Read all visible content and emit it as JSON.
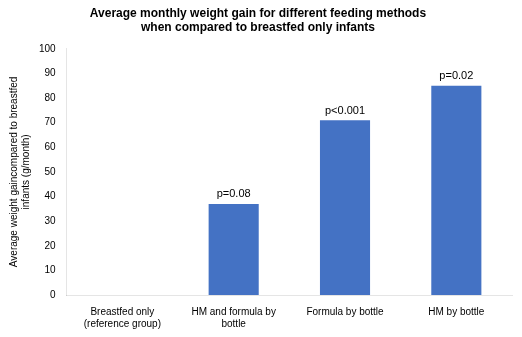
{
  "chart_data": {
    "type": "bar",
    "title": "Average monthly weight gain for different feeding methods\nwhen compared to breastfed only infants",
    "categories": [
      "Breastfed only\n(reference group)",
      "HM and formula by\nbottle",
      "Formula by bottle",
      "HM by bottle"
    ],
    "values": [
      0,
      37,
      71,
      85
    ],
    "color": "#4472C4",
    "ylabel": "Average weight gaincompared to breastfed\ninfants (g/month)",
    "ylim": [
      0,
      100
    ],
    "yticks": [
      0,
      10,
      20,
      30,
      40,
      50,
      60,
      70,
      80,
      90,
      100
    ],
    "grid": false,
    "annotations": [
      {
        "category": "HM and formula by\nbottle",
        "text": "p=0.08"
      },
      {
        "category": "Formula by bottle",
        "text": "p<0.001"
      },
      {
        "category": "HM by bottle",
        "text": "p=0.02"
      }
    ]
  }
}
